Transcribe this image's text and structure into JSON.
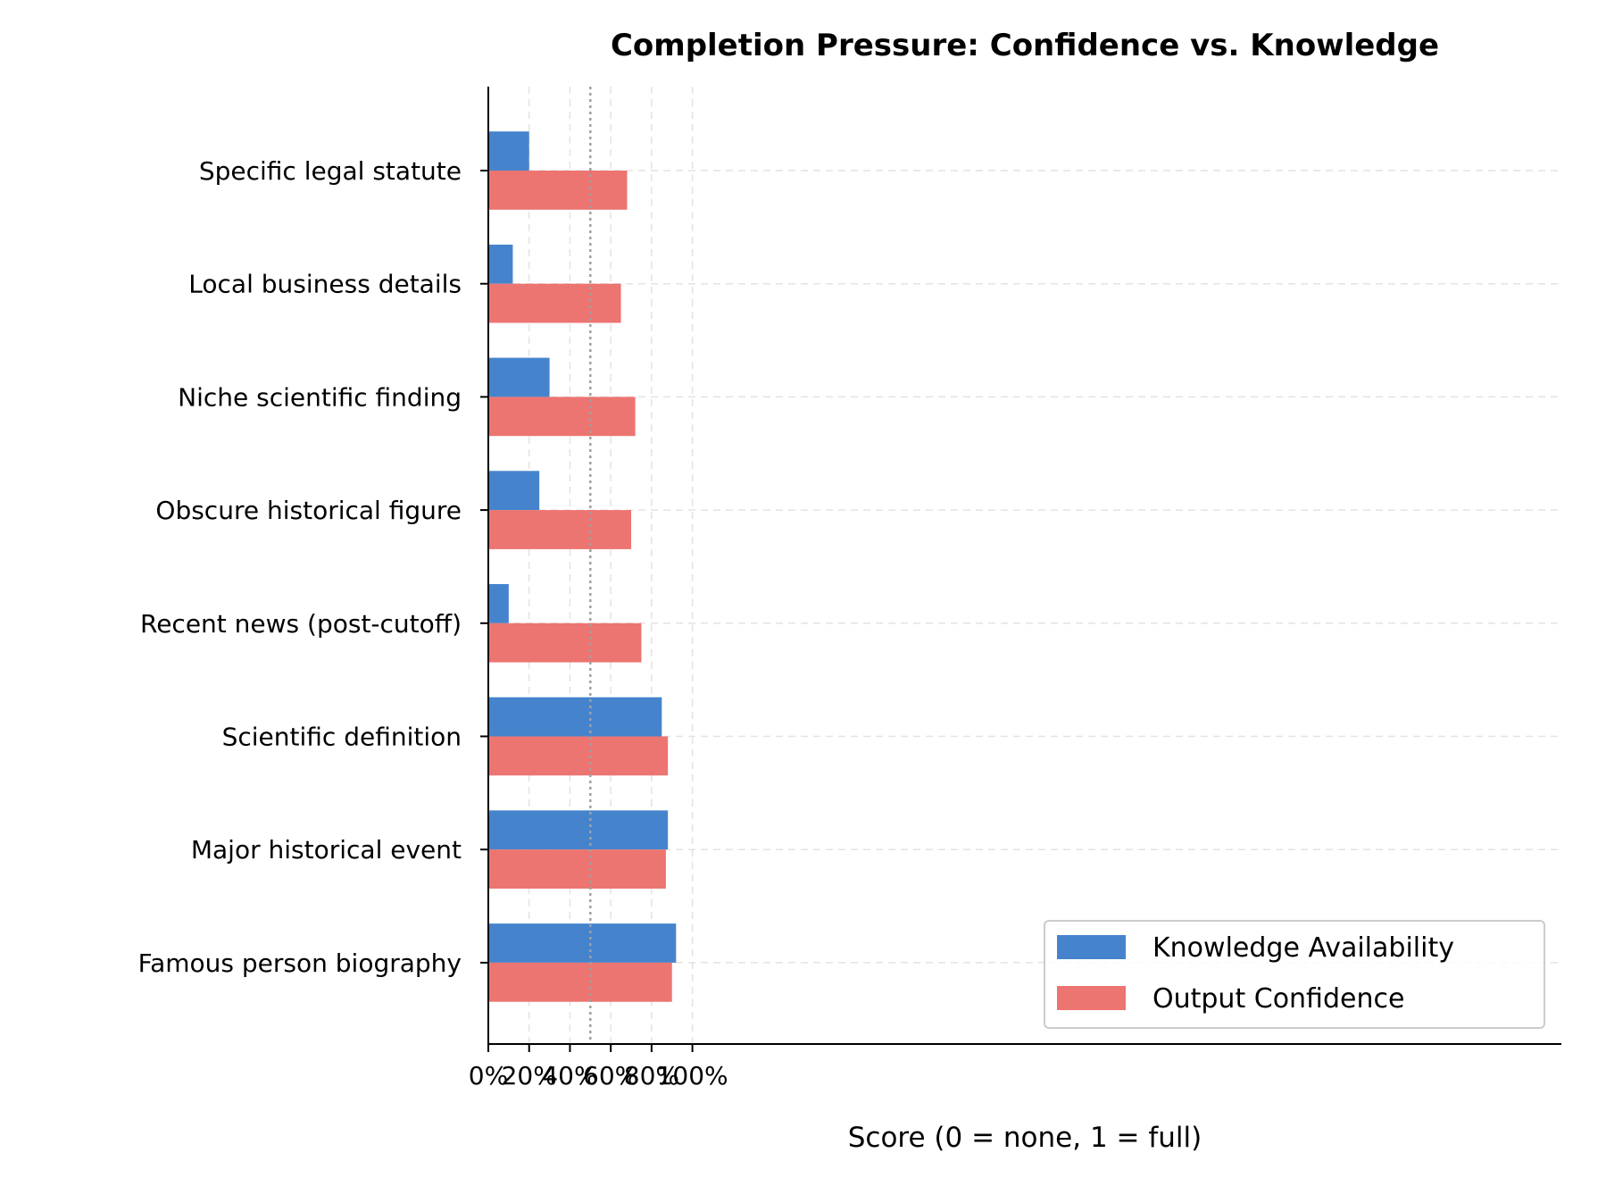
{
  "chart_data": {
    "type": "bar",
    "orientation": "horizontal",
    "title": "Completion Pressure: Confidence vs. Knowledge",
    "xlabel": "Score (0 = none, 1 = full)",
    "ylabel": "",
    "xlim": [
      0,
      1.05
    ],
    "xticks": [
      0,
      0.2,
      0.4,
      0.6,
      0.8,
      1.0
    ],
    "xtick_labels": [
      "0%",
      "20%",
      "40%",
      "60%",
      "80%",
      "100%"
    ],
    "reference_line": 0.5,
    "grid": true,
    "legend_position": "lower-right",
    "categories": [
      "Specific legal statute",
      "Local business details",
      "Niche scientific finding",
      "Obscure historical figure",
      "Recent news (post-cutoff)",
      "Scientific definition",
      "Major historical event",
      "Famous person biography"
    ],
    "series": [
      {
        "name": "Knowledge Availability",
        "color": "#4584CD",
        "values": [
          0.2,
          0.12,
          0.3,
          0.25,
          0.1,
          0.85,
          0.88,
          0.92
        ]
      },
      {
        "name": "Output Confidence",
        "color": "#EC7471",
        "values": [
          0.68,
          0.65,
          0.72,
          0.7,
          0.75,
          0.88,
          0.87,
          0.9
        ]
      }
    ]
  }
}
